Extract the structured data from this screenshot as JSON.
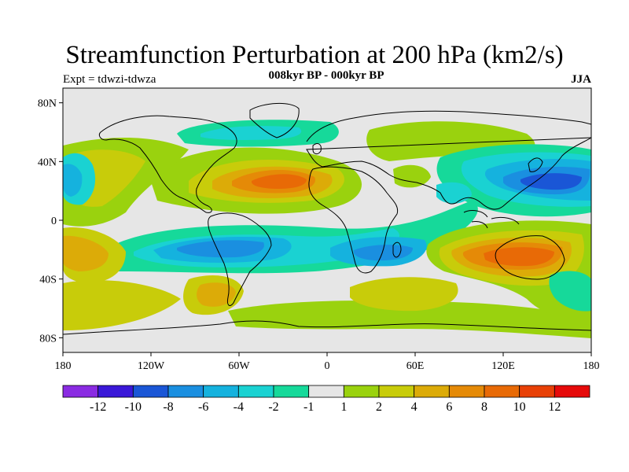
{
  "figure": {
    "title": "Streamfunction Perturbation at 200 hPa (km2/s)",
    "subtitle": "008kyr BP - 000kyr BP",
    "expt_label": "Expt = tdwzi-tdwza",
    "season": "JJA"
  },
  "map": {
    "background_color": "#e6e6e6",
    "lat_ticks": [
      "80N",
      "40N",
      "0",
      "40S",
      "80S"
    ],
    "lon_ticks": [
      "180",
      "120W",
      "60W",
      "0",
      "60E",
      "120E",
      "180"
    ]
  },
  "colorbar": {
    "colors": [
      "#8a2be2",
      "#3a18d8",
      "#1a56d6",
      "#1a8fe0",
      "#15b2de",
      "#1ad2d2",
      "#16d99a",
      "#e6e6e6",
      "#9ad20e",
      "#c8cc0a",
      "#dcab08",
      "#e58a07",
      "#e86a06",
      "#e84006",
      "#e60a0a"
    ],
    "labels": [
      "-12",
      "-10",
      "-8",
      "-6",
      "-4",
      "-2",
      "-1",
      "1",
      "2",
      "4",
      "6",
      "8",
      "10",
      "12"
    ]
  },
  "anomaly_regions": [
    {
      "name": "north-atlantic-high",
      "lon": -40,
      "lat": 28,
      "value": 10
    },
    {
      "name": "australia-high",
      "lon": 130,
      "lat": -28,
      "value": 10
    },
    {
      "name": "south-pacific-high",
      "lon": -175,
      "lat": -20,
      "value": 6
    },
    {
      "name": "south-america-low",
      "lon": -75,
      "lat": -20,
      "value": -6
    },
    {
      "name": "indian-ocean-low",
      "lon": 45,
      "lat": -25,
      "value": -4
    },
    {
      "name": "north-pacific-low",
      "lon": 150,
      "lat": 28,
      "value": -8
    },
    {
      "name": "east-pacific-low",
      "lon": -170,
      "lat": 25,
      "value": -4
    },
    {
      "name": "southern-ocean-high",
      "lon": 60,
      "lat": -45,
      "value": 4
    },
    {
      "name": "arctic-low",
      "lon": -40,
      "lat": 62,
      "value": -2
    },
    {
      "name": "siberia-high",
      "lon": 100,
      "lat": 60,
      "value": 2
    }
  ]
}
